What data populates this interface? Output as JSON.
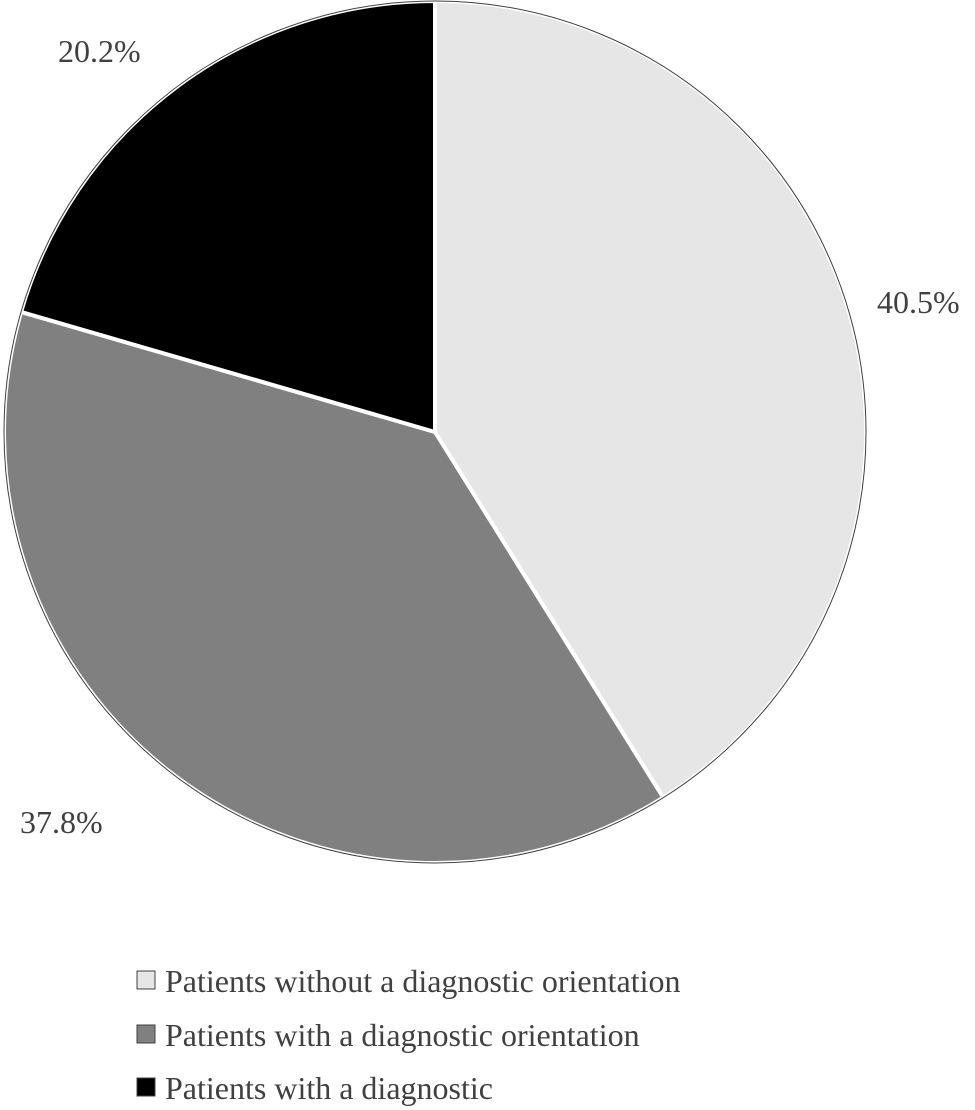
{
  "chart_data": {
    "type": "pie",
    "slices": [
      {
        "label": "Patients without a diagnostic orientation",
        "value": 40.5,
        "display": "40.5%",
        "color": "#e6e6e6"
      },
      {
        "label": "Patients with a diagnostic orientation",
        "value": 37.8,
        "display": "37.8%",
        "color": "#808080"
      },
      {
        "label": "Patients with a diagnostic",
        "value": 20.2,
        "display": "20.2%",
        "color": "#000000"
      }
    ],
    "start": "12 o'clock",
    "direction": "clockwise",
    "slice_outline_color": "#ffffff",
    "outer_outline_color": "#404040",
    "legend_position": "bottom"
  }
}
